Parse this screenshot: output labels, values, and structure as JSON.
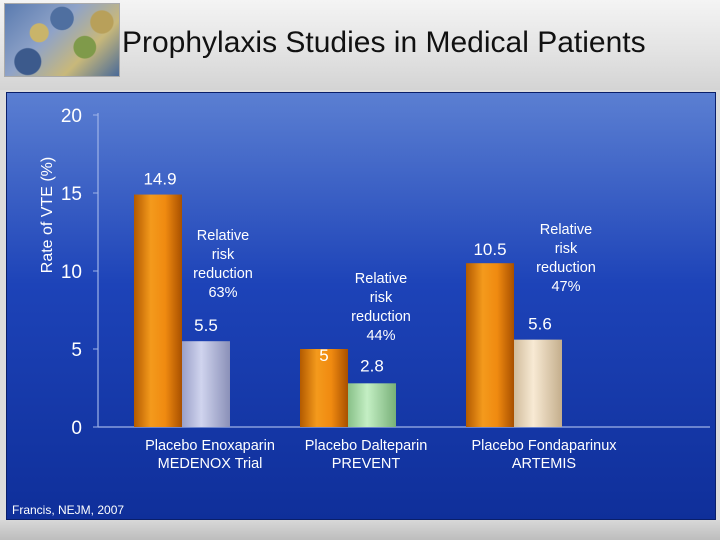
{
  "title": "Prophylaxis Studies in Medical Patients",
  "citation": "Francis, NEJM, 2007",
  "chart_data": {
    "type": "bar",
    "ylabel": "Rate of VTE (%)",
    "ylim": [
      0,
      20
    ],
    "yticks": [
      0,
      5,
      10,
      15,
      20
    ],
    "grid": false,
    "groups": [
      {
        "trial": "MEDENOX Trial",
        "labels": [
          "Placebo",
          "Enoxaparin"
        ],
        "values": [
          14.9,
          5.5
        ],
        "value_labels": [
          "14.9",
          "5.5"
        ],
        "relative_risk_reduction": [
          "Relative",
          "risk",
          "reduction",
          "63%"
        ],
        "colors": [
          "#e8820a",
          "#b8bedf"
        ]
      },
      {
        "trial": "PREVENT",
        "labels": [
          "Placebo",
          "Dalteparin"
        ],
        "values": [
          5,
          2.8
        ],
        "value_labels": [
          "5",
          "2.8"
        ],
        "relative_risk_reduction": [
          "Relative",
          "risk",
          "reduction",
          "44%"
        ],
        "colors": [
          "#e8820a",
          "#a8dca8"
        ]
      },
      {
        "trial": "ARTEMIS",
        "labels": [
          "Placebo",
          "Fondaparinux"
        ],
        "values": [
          10.5,
          5.6
        ],
        "value_labels": [
          "10.5",
          "5.6"
        ],
        "relative_risk_reduction": [
          "Relative",
          "risk",
          "reduction",
          "47%"
        ],
        "colors": [
          "#e8820a",
          "#efdcc0"
        ]
      }
    ]
  }
}
